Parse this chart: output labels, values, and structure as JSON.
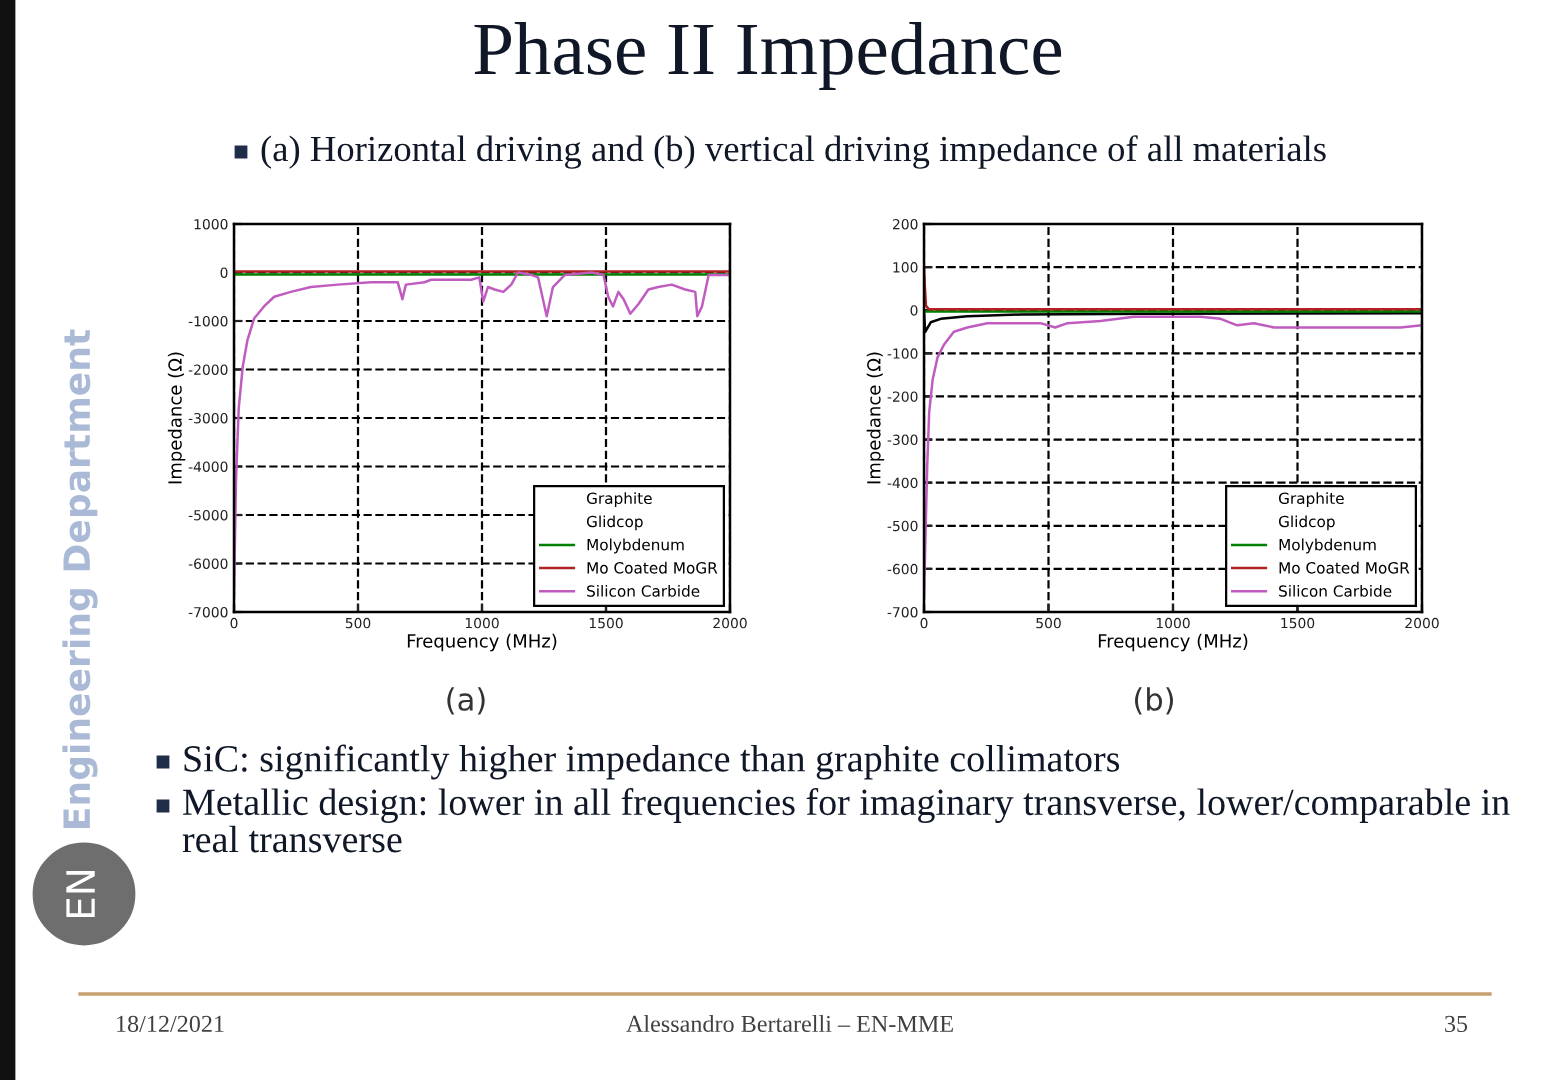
{
  "chart_data": [
    {
      "type": "line",
      "title": "Phase II Impedance",
      "subtitle": "(a) Horizontal driving and (b) vertical driving impedance of all materials",
      "xlabel": "Frequency (MHz)",
      "ylabel": "Impedance (Ω)",
      "xlim": [
        0,
        2000
      ],
      "xticks": [
        0,
        500,
        1000,
        1500,
        2000
      ],
      "ylim": [
        -7000,
        1000
      ],
      "yticks": [
        -7000,
        -6000,
        -5000,
        -4000,
        -3000,
        -2000,
        -1000,
        0,
        1000
      ],
      "grid": true,
      "legend": "lower right",
      "series": [
        {
          "name": "Graphite",
          "values": [
            null
          ]
        },
        {
          "name": "Glidcop",
          "values": [
            null
          ]
        },
        {
          "name": "Molybdenum",
          "color": "#008000",
          "x": [
            0,
            2000
          ],
          "values": [
            -40,
            -40
          ]
        },
        {
          "name": "Mo Coated MoGR",
          "color": "#b22222",
          "x": [
            0,
            2000
          ],
          "values": [
            20,
            20
          ]
        },
        {
          "name": "Silicon Carbide",
          "color": "#c05cc0",
          "x": [
            0,
            8,
            19,
            35,
            54,
            81,
            121,
            162,
            229,
            310,
            418,
            552,
            660,
            679,
            693,
            768,
            795,
            957,
            989,
            1005,
            1024,
            1051,
            1086,
            1118,
            1145,
            1199,
            1226,
            1261,
            1286,
            1334,
            1442,
            1490,
            1509,
            1528,
            1550,
            1571,
            1598,
            1631,
            1671,
            1711,
            1765,
            1819,
            1860,
            1868,
            1887,
            1914,
            2000
          ],
          "values": [
            -6650,
            -4300,
            -2800,
            -1950,
            -1400,
            -950,
            -700,
            -500,
            -400,
            -300,
            -250,
            -200,
            -200,
            -550,
            -250,
            -200,
            -150,
            -150,
            -100,
            -600,
            -300,
            -350,
            -400,
            -250,
            0,
            -50,
            -100,
            -900,
            -300,
            -50,
            0,
            -50,
            -500,
            -700,
            -400,
            -550,
            -850,
            -650,
            -350,
            -300,
            -250,
            -350,
            -400,
            -900,
            -700,
            -50,
            -50
          ]
        }
      ],
      "annotations": [
        "(a)",
        "SiC: significantly higher impedance than graphite collimators",
        "Metallic design: lower in all frequencies for imaginary transverse, lower/comparable in real transverse",
        "Engineering Department",
        "EN",
        "18/12/2021",
        "Alessandro Bertarelli – EN-MME",
        "35"
      ]
    },
    {
      "type": "line",
      "xlabel": "Frequency (MHz)",
      "ylabel": "Impedance (Ω)",
      "xlim": [
        0,
        2000
      ],
      "xticks": [
        0,
        500,
        1000,
        1500,
        2000
      ],
      "ylim": [
        -700,
        200
      ],
      "yticks": [
        -700,
        -600,
        -500,
        -400,
        -300,
        -200,
        -100,
        0,
        100,
        200
      ],
      "grid": true,
      "legend": "lower right",
      "series": [
        {
          "color": "#000000",
          "x": [
            0,
            5,
            27,
            67,
            174,
            388,
            924,
            2000
          ],
          "values": [
            -5,
            -50,
            -28,
            -20,
            -14,
            -10,
            -8,
            -7
          ]
        },
        {
          "name": "Graphite",
          "values": [
            null
          ]
        },
        {
          "name": "Glidcop",
          "values": [
            null
          ]
        },
        {
          "name": "Molybdenum",
          "color": "#008000",
          "x": [
            0,
            2000
          ],
          "values": [
            -3,
            -3
          ]
        },
        {
          "name": "Mo Coated MoGR",
          "color": "#b22222",
          "x": [
            0,
            3,
            8,
            20,
            2000
          ],
          "values": [
            100,
            60,
            10,
            2,
            2
          ]
        },
        {
          "name": "Silicon Carbide",
          "color": "#c05cc0",
          "x": [
            0,
            5,
            13,
            21,
            35,
            54,
            80,
            120,
            174,
            254,
            361,
            468,
            527,
            576,
            709,
            843,
            977,
            1111,
            1191,
            1258,
            1325,
            1405,
            1512,
            1673,
            1834,
            1914,
            2000
          ],
          "values": [
            -665,
            -545,
            -360,
            -235,
            -160,
            -110,
            -80,
            -50,
            -40,
            -30,
            -30,
            -30,
            -40,
            -30,
            -25,
            -15,
            -15,
            -15,
            -20,
            -35,
            -30,
            -40,
            -40,
            -40,
            -40,
            -40,
            -35
          ]
        }
      ],
      "annotations": [
        "(b)"
      ]
    }
  ]
}
